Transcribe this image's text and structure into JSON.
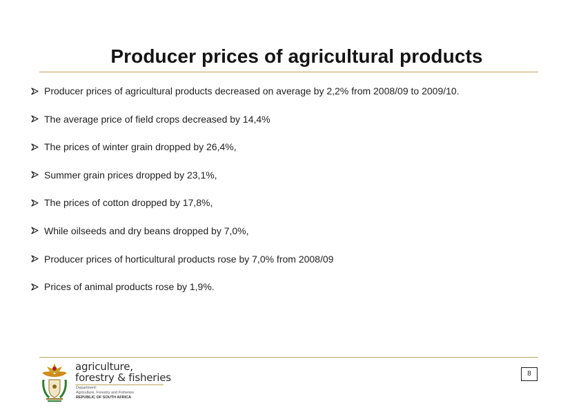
{
  "slide": {
    "title": "Producer prices of agricultural products",
    "bullet_icon": "arrow-bullet-icon",
    "bullets": [
      "Producer prices of agricultural products decreased on average by 2,2% from 2008/09 to 2009/10.",
      "The average price of field crops decreased by 14,4%",
      "The prices of winter grain dropped by 26,4%,",
      "Summer grain prices dropped by 23,1%,",
      "The prices of cotton dropped by 17,8%,",
      "While oilseeds and dry beans dropped by 7,0%,",
      "Producer prices of horticultural products rose by 7,0% from 2008/09",
      "Prices of animal products rose by 1,9%."
    ],
    "page_number": "8"
  },
  "footer": {
    "logo": {
      "line1": "agriculture,",
      "line2": "forestry & fisheries",
      "dept_line1": "Department:",
      "dept_line2": "Agriculture, Forestry and Fisheries",
      "dept_line3": "REPUBLIC OF SOUTH AFRICA",
      "emblem_icon": "coat-of-arms-icon"
    }
  },
  "colors": {
    "rule": "#b8a35a",
    "text": "#1e1e1e",
    "emblem_gold": "#c9a227",
    "emblem_green": "#2e7d32",
    "emblem_red": "#b71c1c"
  }
}
